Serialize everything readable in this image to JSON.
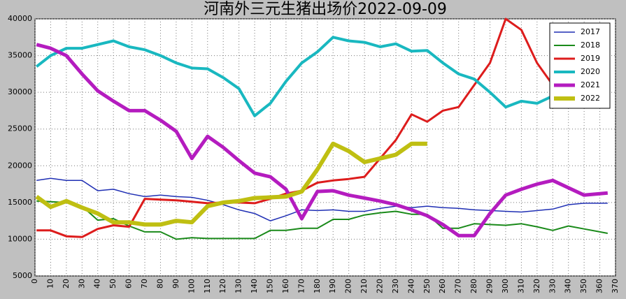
{
  "chart_data": {
    "type": "line",
    "title": "河南外三元生猪出场价2022-09-09",
    "x": [
      1,
      10,
      20,
      30,
      40,
      50,
      60,
      70,
      80,
      90,
      100,
      110,
      120,
      130,
      140,
      150,
      160,
      170,
      180,
      190,
      200,
      210,
      220,
      230,
      240,
      250,
      260,
      270,
      280,
      290,
      300,
      310,
      320,
      330,
      340,
      350,
      360,
      365
    ],
    "series": [
      {
        "name": "2017",
        "color": "#1f2fb4",
        "values": [
          18000,
          18300,
          18000,
          18000,
          16600,
          16800,
          16200,
          15800,
          16000,
          15800,
          15700,
          15300,
          14700,
          14000,
          13500,
          12500,
          13200,
          14000,
          13900,
          14000,
          13800,
          13800,
          14200,
          14500,
          14300,
          14500,
          14300,
          14200,
          14000,
          13900,
          13800,
          13700,
          13900,
          14100,
          14700,
          14900,
          14900,
          14900
        ]
      },
      {
        "name": "2018",
        "color": "#1a8a1a",
        "values": [
          15200,
          15100,
          15000,
          14500,
          12600,
          12800,
          11800,
          11000,
          11000,
          10000,
          10200,
          10100,
          10100,
          10100,
          10100,
          11200,
          11200,
          11500,
          11500,
          12700,
          12700,
          13300,
          13600,
          13800,
          13400,
          13400,
          11500,
          11500,
          12100,
          12000,
          11900,
          12100,
          11700,
          11200,
          11800,
          11400,
          11000,
          10800
        ]
      },
      {
        "name": "2019",
        "color": "#dd1c1c",
        "values": [
          11200,
          11200,
          10400,
          10300,
          11400,
          11900,
          11700,
          15500,
          15400,
          15300,
          15100,
          14900,
          15000,
          15000,
          14900,
          15500,
          16200,
          16600,
          17700,
          18000,
          18200,
          18500,
          21000,
          23500,
          27000,
          26000,
          27500,
          28000,
          31000,
          34000,
          40000,
          38500,
          34000,
          31000,
          null,
          null,
          null,
          null
        ]
      },
      {
        "name": "2020",
        "color": "#19b8c0",
        "values": [
          33500,
          35000,
          36000,
          36000,
          36500,
          37000,
          36200,
          35800,
          35000,
          34000,
          33300,
          33200,
          32000,
          30500,
          26800,
          28500,
          31500,
          34000,
          35500,
          37500,
          37000,
          36800,
          36200,
          36600,
          35600,
          35700,
          34000,
          32500,
          31800,
          30000,
          28000,
          28800,
          28500,
          29500,
          null,
          null,
          null,
          null
        ]
      },
      {
        "name": "2021",
        "color": "#b41cbf",
        "values": [
          36500,
          36000,
          35000,
          32500,
          30200,
          28800,
          27500,
          27500,
          26200,
          24700,
          21000,
          24000,
          22500,
          20700,
          19000,
          18500,
          16800,
          12800,
          16500,
          16600,
          16000,
          15600,
          15200,
          14700,
          14000,
          13200,
          12000,
          10500,
          10500,
          13500,
          16000,
          16800,
          17500,
          18000,
          17000,
          16000,
          16200,
          16300
        ]
      },
      {
        "name": "2022",
        "color": "#bfbf12",
        "values": [
          15800,
          14400,
          15200,
          14300,
          13500,
          12300,
          12300,
          12000,
          12000,
          12500,
          12300,
          14500,
          15000,
          15200,
          15600,
          15700,
          15800,
          16500,
          19500,
          23000,
          22000,
          20500,
          21000,
          21500,
          23000,
          23000,
          null,
          null,
          null,
          null,
          null,
          null,
          null,
          null,
          null,
          null,
          null,
          null
        ]
      }
    ],
    "xlim": [
      0,
      370
    ],
    "xticks": [
      0,
      10,
      20,
      30,
      40,
      50,
      60,
      70,
      80,
      90,
      100,
      110,
      120,
      130,
      140,
      150,
      160,
      170,
      180,
      190,
      200,
      210,
      220,
      230,
      240,
      250,
      260,
      270,
      280,
      290,
      300,
      310,
      320,
      330,
      340,
      350,
      360,
      370
    ],
    "ylim": [
      5000,
      40000
    ],
    "yticks": [
      5000,
      10000,
      15000,
      20000,
      25000,
      30000,
      35000,
      40000
    ],
    "grid": true,
    "legend": "upper right"
  }
}
